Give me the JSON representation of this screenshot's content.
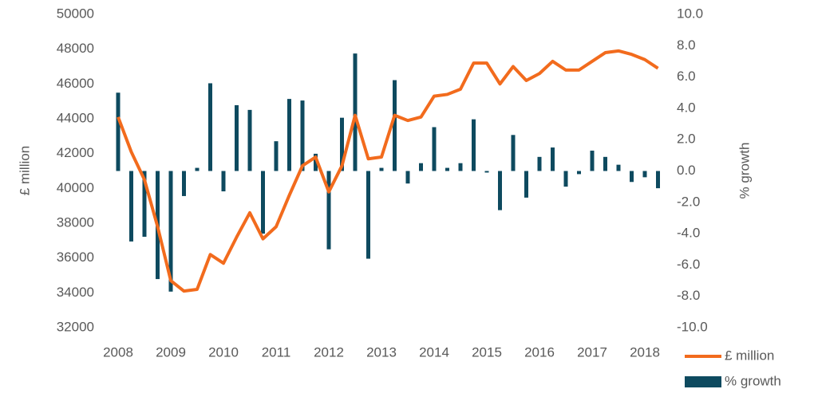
{
  "chart_data": {
    "type": "bar-line",
    "y_label": "£ million",
    "y2_label": "% growth",
    "categories": [
      "2008",
      null,
      null,
      null,
      "2009",
      null,
      null,
      null,
      "2010",
      null,
      null,
      null,
      "2011",
      null,
      null,
      null,
      "2012",
      null,
      null,
      null,
      "2013",
      null,
      null,
      null,
      "2014",
      null,
      null,
      null,
      "2015",
      null,
      null,
      null,
      "2016",
      null,
      null,
      null,
      "2017",
      null,
      null,
      null,
      "2018",
      null
    ],
    "series": [
      {
        "name": "£ million",
        "type": "line",
        "color": "#f26b1d",
        "axis": "y",
        "values": [
          44100,
          42100,
          40500,
          37800,
          34700,
          34100,
          34200,
          36200,
          35700,
          37200,
          38600,
          37100,
          37800,
          39600,
          41300,
          41800,
          39800,
          41300,
          44200,
          41700,
          41800,
          44200,
          43900,
          44100,
          45300,
          45400,
          45700,
          47200,
          47200,
          46000,
          47000,
          46200,
          46600,
          47300,
          46800,
          46800,
          47300,
          47800,
          47900,
          47700,
          47400,
          46900
        ]
      },
      {
        "name": "% growth",
        "type": "bar",
        "color": "#0e4a5f",
        "axis": "y2",
        "values": [
          5.0,
          -4.5,
          -4.2,
          -6.9,
          -7.7,
          -1.6,
          0.2,
          5.6,
          -1.3,
          4.2,
          3.9,
          -4.0,
          1.9,
          4.6,
          4.5,
          1.1,
          -5.0,
          3.4,
          7.5,
          -5.6,
          0.2,
          5.8,
          -0.8,
          0.5,
          2.8,
          0.2,
          0.5,
          3.3,
          -0.1,
          -2.5,
          2.3,
          -1.7,
          0.9,
          1.5,
          -1.0,
          -0.2,
          1.3,
          0.9,
          0.4,
          -0.7,
          -0.4,
          -1.1
        ]
      }
    ],
    "ylim": [
      32000,
      50000
    ],
    "yticks": [
      32000,
      34000,
      36000,
      38000,
      40000,
      42000,
      44000,
      46000,
      48000,
      50000
    ],
    "y2lim": [
      -10,
      10
    ],
    "y2ticks": [
      {
        "value": -10,
        "label": "-10.0"
      },
      {
        "value": -8,
        "label": "-8.0"
      },
      {
        "value": -6,
        "label": "-6.0"
      },
      {
        "value": -4,
        "label": "-4.0"
      },
      {
        "value": -2,
        "label": "-2.0"
      },
      {
        "value": 0,
        "label": "0.0"
      },
      {
        "value": 2,
        "label": "2.0"
      },
      {
        "value": 4,
        "label": "4.0"
      },
      {
        "value": 6,
        "label": "6.0"
      },
      {
        "value": 8,
        "label": "8.0"
      },
      {
        "value": 10,
        "label": "10.0"
      }
    ],
    "legend": "bottom-right"
  }
}
